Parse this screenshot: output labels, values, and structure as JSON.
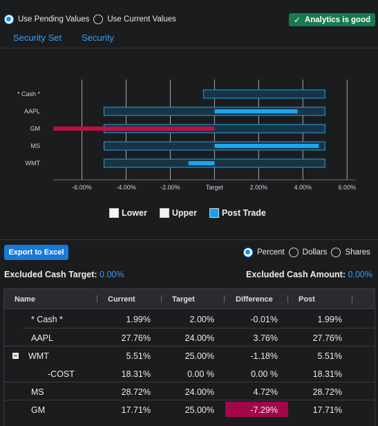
{
  "value_mode": {
    "options": [
      {
        "label": "Use Pending Values",
        "selected": true
      },
      {
        "label": "Use Current Values",
        "selected": false
      }
    ]
  },
  "status_badge": {
    "label": "Analytics is good",
    "icon": "check-icon",
    "color": "#177a4f"
  },
  "tabs": [
    {
      "label": "Security Set"
    },
    {
      "label": "Security"
    }
  ],
  "chart_data": {
    "type": "bar",
    "orientation": "horizontal",
    "categories": [
      "* Cash *",
      "AAPL",
      "GM",
      "MS",
      "WMT"
    ],
    "x_ticks": [
      "-6.00%",
      "-4.00%",
      "-2.00%",
      "Target",
      "2.00%",
      "4.00%",
      "6.00%"
    ],
    "xlim": [
      -7.3,
      6.4
    ],
    "grid": true,
    "series": [
      {
        "name": "Lower",
        "color": "#e9e9e9",
        "ranges": [
          [
            -0.5,
            5
          ],
          [
            -5,
            5
          ],
          [
            -5,
            5
          ],
          [
            -5,
            5
          ],
          [
            -5,
            5
          ]
        ]
      },
      {
        "name": "Upper",
        "color": "#e9e9e9"
      },
      {
        "name": "Post Trade",
        "color": "#1aa6ee",
        "values": [
          -0.01,
          3.76,
          -7.29,
          4.72,
          -1.18
        ]
      }
    ],
    "legend_position": "bottom"
  },
  "legend": [
    {
      "label": "Lower",
      "color": "#f2f2f2"
    },
    {
      "label": "Upper",
      "color": "#f2f2f2"
    },
    {
      "label": "Post Trade",
      "color": "#19a2ec"
    }
  ],
  "export_label": "Export to Excel",
  "unit_mode": {
    "options": [
      {
        "label": "Percent",
        "selected": true
      },
      {
        "label": "Dollars",
        "selected": false
      },
      {
        "label": "Shares",
        "selected": false
      }
    ]
  },
  "excluded": {
    "target_label": "Excluded Cash Target:",
    "target_value": "0.00%",
    "amount_label": "Excluded Cash Amount:",
    "amount_value": "0.00%"
  },
  "grid": {
    "columns": [
      "Name",
      "Current",
      "Target",
      "Difference",
      "Post"
    ],
    "rows": [
      {
        "name": "* Cash *",
        "indent": 1,
        "current": "1.99%",
        "target": "2.00%",
        "difference": "-0.01%",
        "post": "1.99%"
      },
      {
        "name": "AAPL",
        "indent": 1,
        "current": "27.76%",
        "target": "24.00%",
        "difference": "3.76%",
        "post": "27.76%"
      },
      {
        "name": "WMT",
        "indent": 0,
        "expanded": true,
        "current": "5.51%",
        "target": "25.00%",
        "difference": "-1.18%",
        "post": "5.51%"
      },
      {
        "name": "-COST",
        "indent": 2,
        "current": "18.31%",
        "target": "0.00 %",
        "difference": "0.00 %",
        "post": "18.31%"
      },
      {
        "name": "MS",
        "indent": 1,
        "current": "28.72%",
        "target": "24.00%",
        "difference": "4.72%",
        "post": "28.72%"
      },
      {
        "name": "GM",
        "indent": 1,
        "current": "17.71%",
        "target": "25.00%",
        "difference": "-7.29%",
        "post": "17.71%",
        "highlight": "#a3064a"
      }
    ]
  }
}
